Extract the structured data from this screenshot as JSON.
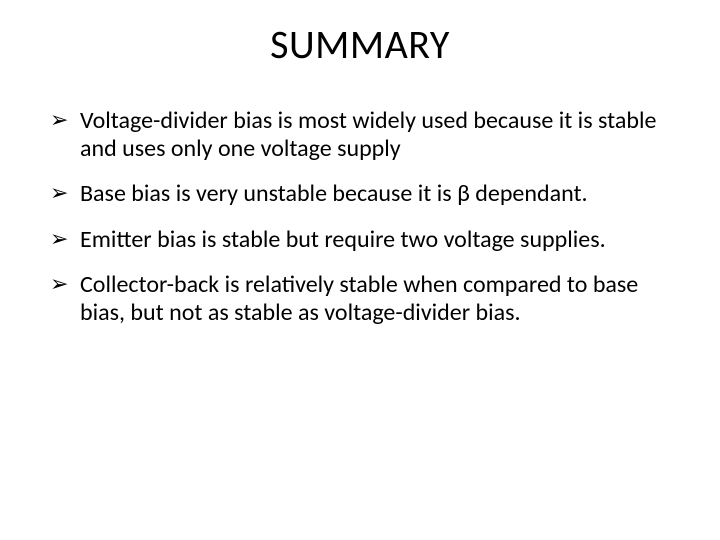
{
  "slide": {
    "title": "SUMMARY",
    "title_fontsize": 40,
    "body_fontsize": 24,
    "background_color": "#ffffff",
    "text_color": "#000000",
    "bullet_glyph": "➢",
    "bullets": [
      "Voltage-divider bias is most widely used because it is stable and uses only one voltage supply",
      "Base bias is very unstable because it is β dependant.",
      "Emitter bias is stable but require two voltage supplies.",
      "Collector-back is relatively stable when compared to base bias, but not as stable as voltage-divider bias."
    ]
  }
}
